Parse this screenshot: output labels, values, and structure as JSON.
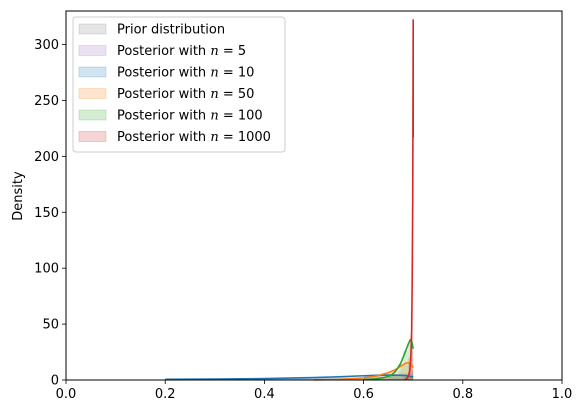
{
  "chart_data": {
    "type": "line",
    "title": "",
    "xlabel": "",
    "ylabel": "Density",
    "xlim": [
      0.0,
      1.0
    ],
    "ylim": [
      0,
      330
    ],
    "xticks": [
      0.0,
      0.2,
      0.4,
      0.6,
      0.8,
      1.0
    ],
    "xtick_labels": [
      "0.0",
      "0.2",
      "0.4",
      "0.6",
      "0.8",
      "1.0"
    ],
    "yticks": [
      0,
      50,
      100,
      150,
      200,
      250,
      300
    ],
    "ytick_labels": [
      "0",
      "50",
      "100",
      "150",
      "200",
      "250",
      "300"
    ],
    "grid": false,
    "legend_position": "top-left",
    "series": [
      {
        "name": "Prior distribution",
        "color": "#7f7f7f",
        "line": false,
        "bins": [
          [
            0.2,
            0.3,
            1.0
          ],
          [
            0.3,
            0.4,
            1.0
          ],
          [
            0.4,
            0.5,
            1.0
          ],
          [
            0.5,
            0.6,
            1.0
          ],
          [
            0.6,
            0.7,
            1.0
          ]
        ],
        "x": [],
        "values": []
      },
      {
        "name": "Posterior with n = 5",
        "legend_prefix": "Posterior with ",
        "legend_math": "n = 5",
        "color": "#9467bd",
        "line": false,
        "bins": [
          [
            0.2,
            0.3,
            0.4
          ],
          [
            0.3,
            0.4,
            0.8
          ],
          [
            0.4,
            0.5,
            1.2
          ],
          [
            0.5,
            0.6,
            2.0
          ],
          [
            0.6,
            0.65,
            3.0
          ],
          [
            0.65,
            0.675,
            4.5
          ],
          [
            0.675,
            0.69,
            6.0
          ],
          [
            0.69,
            0.7,
            8.0
          ]
        ],
        "x": [],
        "values": []
      },
      {
        "name": "Posterior with n = 10",
        "legend_prefix": "Posterior with ",
        "legend_math": "n = 10",
        "color": "#1f77b4",
        "line": true,
        "bins": [
          [
            0.2,
            0.3,
            0.5
          ],
          [
            0.3,
            0.4,
            1.0
          ],
          [
            0.4,
            0.5,
            1.5
          ],
          [
            0.5,
            0.6,
            2.5
          ],
          [
            0.6,
            0.65,
            4.0
          ],
          [
            0.65,
            0.675,
            4.5
          ],
          [
            0.675,
            0.7,
            5.0
          ]
        ],
        "x": [
          0.2,
          0.3,
          0.4,
          0.5,
          0.55,
          0.6,
          0.625,
          0.65,
          0.67,
          0.685,
          0.69,
          0.695,
          0.7
        ],
        "values": [
          0.6,
          0.9,
          1.3,
          2.2,
          2.9,
          3.8,
          4.2,
          4.4,
          4.3,
          4.0,
          3.6,
          3.1,
          2.5
        ]
      },
      {
        "name": "Posterior with n = 50",
        "legend_prefix": "Posterior with ",
        "legend_math": "n = 50",
        "color": "#ff7f0e",
        "line": true,
        "bins": [
          [
            0.5,
            0.6,
            0.5
          ],
          [
            0.6,
            0.65,
            3.0
          ],
          [
            0.65,
            0.675,
            8.0
          ],
          [
            0.675,
            0.69,
            14.0
          ],
          [
            0.69,
            0.7,
            16.0
          ]
        ],
        "x": [
          0.5,
          0.55,
          0.6,
          0.625,
          0.65,
          0.665,
          0.675,
          0.685,
          0.69,
          0.695,
          0.7
        ],
        "values": [
          0.1,
          0.5,
          1.8,
          3.5,
          6.5,
          9.5,
          12.5,
          15.0,
          15.5,
          14.0,
          11.0
        ]
      },
      {
        "name": "Posterior with n = 100",
        "legend_prefix": "Posterior with ",
        "legend_math": "n = 100",
        "color": "#2ca02c",
        "line": true,
        "bins": [
          [
            0.6,
            0.65,
            1.0
          ],
          [
            0.65,
            0.67,
            5.0
          ],
          [
            0.67,
            0.68,
            14.0
          ],
          [
            0.68,
            0.69,
            26.0
          ],
          [
            0.69,
            0.7,
            33.0
          ]
        ],
        "x": [
          0.6,
          0.62,
          0.64,
          0.655,
          0.665,
          0.675,
          0.683,
          0.69,
          0.694,
          0.697,
          0.7
        ],
        "values": [
          0.3,
          0.8,
          2.0,
          4.0,
          8.0,
          15.0,
          24.0,
          32.0,
          36.0,
          34.0,
          28.0
        ]
      },
      {
        "name": "Posterior with n = 1000",
        "legend_prefix": "Posterior with ",
        "legend_math": "n = 1000",
        "color": "#d62728",
        "line": true,
        "bins": [
          [
            0.68,
            0.69,
            3.0
          ],
          [
            0.69,
            0.695,
            20.0
          ],
          [
            0.695,
            0.698,
            62.0
          ],
          [
            0.698,
            0.7,
            40.0
          ]
        ],
        "x": [
          0.685,
          0.69,
          0.693,
          0.695,
          0.697,
          0.698,
          0.699,
          0.6995,
          0.6998,
          0.7,
          0.7
        ],
        "values": [
          0.5,
          3.0,
          8.0,
          18.0,
          45.0,
          90.0,
          160.0,
          230.0,
          285.0,
          322.0,
          217.0
        ]
      }
    ]
  }
}
